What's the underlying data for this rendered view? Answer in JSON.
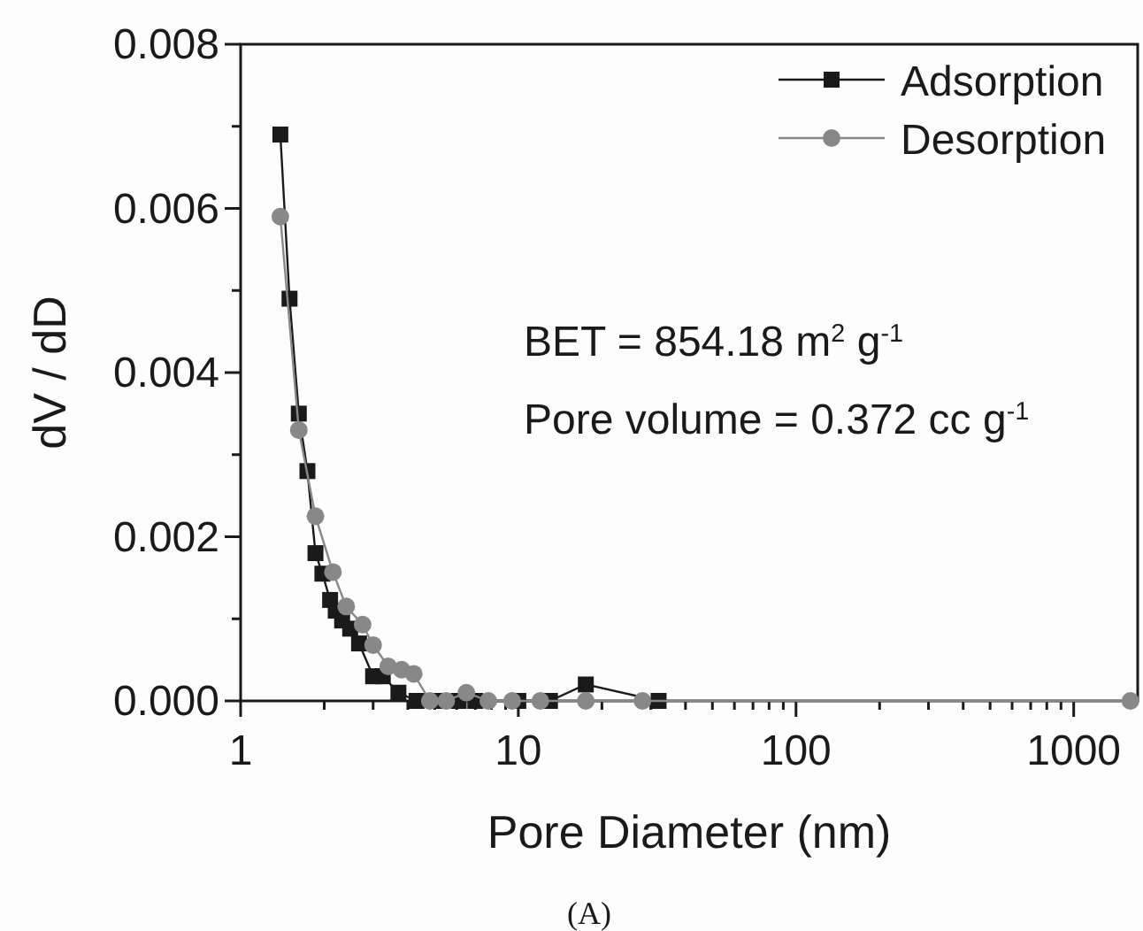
{
  "chart_data": {
    "type": "line",
    "xlabel": "Pore Diameter (nm)",
    "ylabel": "dV / dD",
    "log": "x",
    "legend": "top right",
    "line_style": "solid",
    "xlim": [
      1,
      1700
    ],
    "ylim": [
      0,
      0.008
    ],
    "xticks": [
      1,
      {
        "value": 2,
        "label": null
      },
      {
        "value": 3,
        "label": null
      },
      {
        "value": 4,
        "label": null
      },
      {
        "value": 5,
        "label": null
      },
      {
        "value": 6,
        "label": null
      },
      {
        "value": 7,
        "label": null
      },
      {
        "value": 8,
        "label": null
      },
      {
        "value": 9,
        "label": null
      },
      10,
      {
        "value": 20,
        "label": null
      },
      {
        "value": 30,
        "label": null
      },
      {
        "value": 40,
        "label": null
      },
      {
        "value": 50,
        "label": null
      },
      {
        "value": 60,
        "label": null
      },
      {
        "value": 70,
        "label": null
      },
      {
        "value": 80,
        "label": null
      },
      {
        "value": 90,
        "label": null
      },
      100,
      {
        "value": 200,
        "label": null
      },
      {
        "value": 300,
        "label": null
      },
      {
        "value": 400,
        "label": null
      },
      {
        "value": 500,
        "label": null
      },
      {
        "value": 600,
        "label": null
      },
      {
        "value": 700,
        "label": null
      },
      {
        "value": 800,
        "label": null
      },
      {
        "value": 900,
        "label": null
      },
      1000
    ],
    "yticks": [
      {
        "value": 0,
        "label": "0.000"
      },
      {
        "value": 0.001,
        "label": null
      },
      {
        "value": 0.002,
        "label": "0.002"
      },
      {
        "value": 0.003,
        "label": null
      },
      {
        "value": 0.004,
        "label": "0.004"
      },
      {
        "value": 0.005,
        "label": null
      },
      {
        "value": 0.006,
        "label": "0.006"
      },
      {
        "value": 0.007,
        "label": null
      },
      {
        "value": 0.008,
        "label": "0.008"
      }
    ],
    "series": [
      {
        "name": "Adsorption",
        "color": "#1a1a1a",
        "marker": "square",
        "x": [
          1.39,
          1.5,
          1.62,
          1.74,
          1.86,
          1.97,
          2.1,
          2.2,
          2.32,
          2.48,
          2.67,
          3.0,
          3.25,
          3.7,
          4.3,
          5.0,
          6.1,
          7.0,
          10,
          13,
          17.5,
          32
        ],
        "values": [
          0.0069,
          0.0049,
          0.0035,
          0.0028,
          0.0018,
          0.00155,
          0.00123,
          0.0011,
          0.00098,
          0.00088,
          0.0007,
          0.0003,
          0.0003,
          0.0001,
          0,
          0,
          0,
          0,
          0,
          0,
          0.0002,
          0
        ]
      },
      {
        "name": "Desorption",
        "color": "#888888",
        "marker": "circle",
        "x": [
          1.39,
          1.62,
          1.86,
          2.15,
          2.4,
          2.75,
          3.0,
          3.4,
          3.8,
          4.2,
          4.8,
          5.5,
          6.5,
          7.8,
          9.5,
          12,
          17.5,
          28,
          1600
        ],
        "values": [
          0.0059,
          0.0033,
          0.00225,
          0.00157,
          0.00115,
          0.00093,
          0.00068,
          0.00042,
          0.00038,
          0.00033,
          0,
          0,
          0.0001,
          0,
          0,
          0,
          0,
          0,
          0
        ]
      }
    ],
    "annotations": [
      "BET =  854.18 m$^{2}$ g$^{-1}$",
      "Pore volume = 0.372 cc g$^{-1}$",
      "(A)"
    ]
  }
}
